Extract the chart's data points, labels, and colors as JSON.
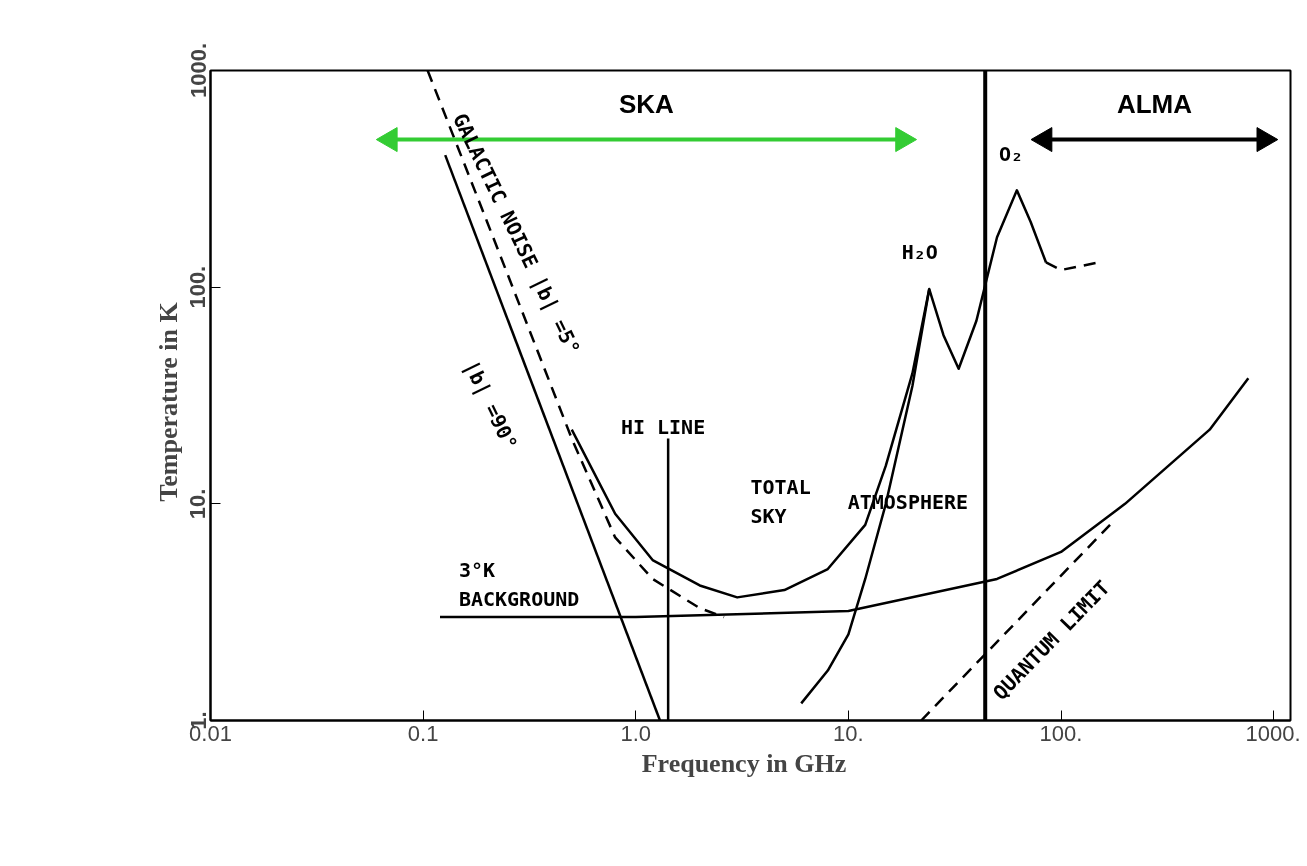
{
  "chart_data": {
    "type": "line",
    "xlabel": "Frequency   in GHz",
    "ylabel": "Temperature   in K",
    "log": "xy",
    "xlim": [
      0.01,
      1200
    ],
    "ylim": [
      1,
      1000
    ],
    "xticks": [
      {
        "value": 0.01,
        "label": "0.01"
      },
      {
        "value": 0.1,
        "label": "0.1"
      },
      {
        "value": 1,
        "label": "1.0"
      },
      {
        "value": 10,
        "label": "10."
      },
      {
        "value": 100,
        "label": "100."
      },
      {
        "value": 1000,
        "label": "1000."
      }
    ],
    "yticks": [
      {
        "value": 1,
        "label": "1."
      },
      {
        "value": 10,
        "label": "10."
      },
      {
        "value": 100,
        "label": "100."
      },
      {
        "value": 1000,
        "label": "1000."
      }
    ],
    "grid": false,
    "series": [
      {
        "color": "#000000",
        "line_style": "solid",
        "x": [
          0.127,
          1.3
        ],
        "values": [
          407,
          1
        ]
      },
      {
        "color": "#000000",
        "line_style": "dashed",
        "x": [
          0.105,
          0.2,
          0.5,
          0.8,
          1.2,
          2,
          2.6
        ],
        "values": [
          1000,
          200,
          20,
          7,
          4.5,
          3.3,
          3.0
        ]
      },
      {
        "color": "#000000",
        "line_style": "solid",
        "x": [
          0.5,
          0.8,
          1.2,
          2,
          3,
          5,
          8,
          12,
          15,
          20,
          24,
          28,
          33,
          40,
          50,
          62,
          72,
          85
        ],
        "values": [
          22,
          9,
          5.5,
          4.2,
          3.7,
          4,
          5,
          8,
          15,
          40,
          98,
          60,
          42,
          70,
          170,
          280,
          200,
          130
        ]
      },
      {
        "color": "#000000",
        "line_style": "dashed",
        "x": [
          85,
          100,
          150
        ],
        "values": [
          130,
          120,
          130
        ]
      },
      {
        "color": "#000000",
        "line_style": "solid",
        "x": [
          6,
          8,
          10,
          12,
          15,
          20,
          24
        ],
        "values": [
          1.2,
          1.7,
          2.5,
          4.5,
          10,
          35,
          98
        ]
      },
      {
        "color": "#000000",
        "line_style": "solid",
        "x": [
          0.12,
          1,
          10,
          50,
          100,
          200,
          500,
          760
        ],
        "values": [
          3,
          3,
          3.2,
          4.5,
          6,
          10,
          22,
          38
        ]
      },
      {
        "color": "#000000",
        "line_style": "dashed",
        "x": [
          22,
          170
        ],
        "values": [
          1,
          8
        ]
      },
      {
        "color": "#000000",
        "line_style": "solid",
        "x": [
          1.42,
          1.42
        ],
        "values": [
          1,
          20
        ]
      },
      {
        "name": "SKA",
        "color": "#33cc33",
        "line_style": "solid",
        "marker": "triangle",
        "x": [
          0.07,
          18
        ],
        "values": [
          480,
          480
        ]
      },
      {
        "name": "ALMA",
        "color": "#000000",
        "line_style": "solid",
        "marker": "triangle",
        "x": [
          84,
          900
        ],
        "values": [
          480,
          480
        ]
      }
    ],
    "ref_lines": [
      {
        "axis": "x",
        "value": 44,
        "color": "#000000",
        "line_style": "solid"
      }
    ],
    "annotations": [
      "GALACTIC NOISE |b| =5°",
      "|b| =90°",
      "HI LINE",
      "TOTAL\nSKY",
      "ATMOSPHERE",
      "3°K\nBACKGROUND",
      "QUANTUM LIMIT",
      "H₂O",
      "O₂"
    ]
  }
}
